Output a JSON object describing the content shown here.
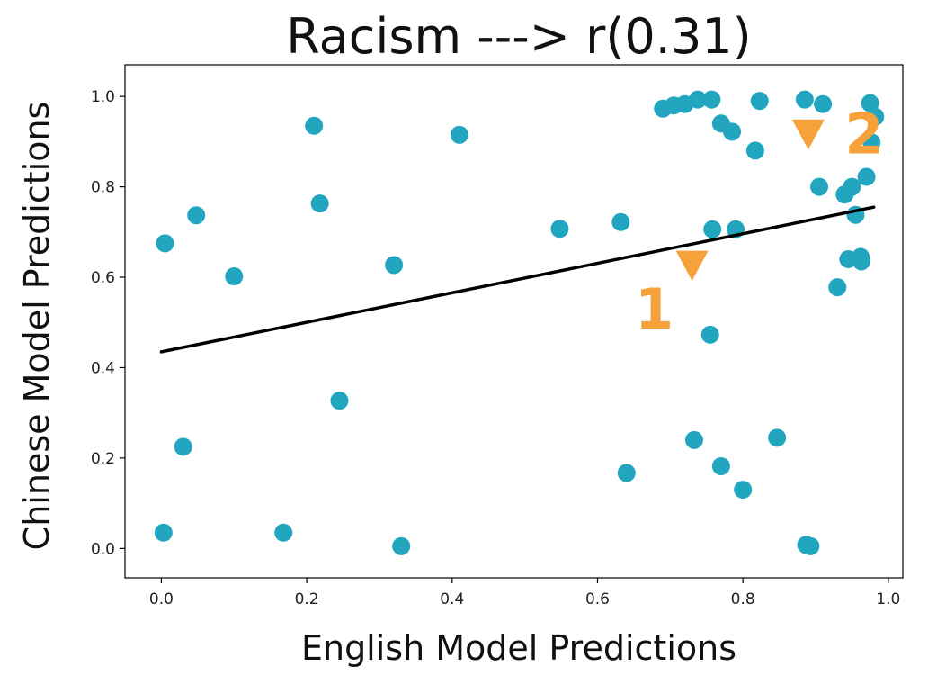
{
  "chart_data": {
    "type": "scatter",
    "title": "Racism ---> r(0.31)",
    "xlabel": "English Model Predictions",
    "ylabel": "Chinese Model Predictions",
    "xlim": [
      -0.05,
      1.02
    ],
    "ylim": [
      -0.065,
      1.07
    ],
    "xticks": [
      0.0,
      0.2,
      0.4,
      0.6,
      0.8,
      1.0
    ],
    "xtick_labels": [
      "0.0",
      "0.2",
      "0.4",
      "0.6",
      "0.8",
      "1.0"
    ],
    "yticks": [
      0.0,
      0.2,
      0.4,
      0.6,
      0.8,
      1.0
    ],
    "ytick_labels": [
      "0.0",
      "0.2",
      "0.4",
      "0.6",
      "0.8",
      "1.0"
    ],
    "grid": false,
    "point_color": "#22a6c0",
    "line_color": "#000000",
    "annotation_color": "#f6a13a",
    "points": [
      {
        "x": 0.005,
        "y": 0.675
      },
      {
        "x": 0.003,
        "y": 0.035
      },
      {
        "x": 0.03,
        "y": 0.225
      },
      {
        "x": 0.048,
        "y": 0.737
      },
      {
        "x": 0.1,
        "y": 0.602
      },
      {
        "x": 0.168,
        "y": 0.035
      },
      {
        "x": 0.21,
        "y": 0.935
      },
      {
        "x": 0.218,
        "y": 0.763
      },
      {
        "x": 0.245,
        "y": 0.327
      },
      {
        "x": 0.32,
        "y": 0.627
      },
      {
        "x": 0.33,
        "y": 0.005
      },
      {
        "x": 0.41,
        "y": 0.915
      },
      {
        "x": 0.548,
        "y": 0.707
      },
      {
        "x": 0.632,
        "y": 0.722
      },
      {
        "x": 0.64,
        "y": 0.167
      },
      {
        "x": 0.69,
        "y": 0.973
      },
      {
        "x": 0.705,
        "y": 0.98
      },
      {
        "x": 0.72,
        "y": 0.983
      },
      {
        "x": 0.733,
        "y": 0.24
      },
      {
        "x": 0.738,
        "y": 0.993
      },
      {
        "x": 0.755,
        "y": 0.473
      },
      {
        "x": 0.757,
        "y": 0.993
      },
      {
        "x": 0.758,
        "y": 0.706
      },
      {
        "x": 0.77,
        "y": 0.94
      },
      {
        "x": 0.77,
        "y": 0.182
      },
      {
        "x": 0.785,
        "y": 0.922
      },
      {
        "x": 0.79,
        "y": 0.706
      },
      {
        "x": 0.8,
        "y": 0.13
      },
      {
        "x": 0.817,
        "y": 0.88
      },
      {
        "x": 0.823,
        "y": 0.99
      },
      {
        "x": 0.847,
        "y": 0.245
      },
      {
        "x": 0.885,
        "y": 0.993
      },
      {
        "x": 0.887,
        "y": 0.008
      },
      {
        "x": 0.893,
        "y": 0.005
      },
      {
        "x": 0.905,
        "y": 0.8
      },
      {
        "x": 0.91,
        "y": 0.983
      },
      {
        "x": 0.93,
        "y": 0.578
      },
      {
        "x": 0.94,
        "y": 0.783
      },
      {
        "x": 0.945,
        "y": 0.64
      },
      {
        "x": 0.95,
        "y": 0.8
      },
      {
        "x": 0.955,
        "y": 0.738
      },
      {
        "x": 0.962,
        "y": 0.645
      },
      {
        "x": 0.963,
        "y": 0.635
      },
      {
        "x": 0.97,
        "y": 0.822
      },
      {
        "x": 0.975,
        "y": 0.985
      },
      {
        "x": 0.977,
        "y": 0.898
      },
      {
        "x": 0.982,
        "y": 0.955
      }
    ],
    "fit_line": {
      "x": [
        0.0,
        0.98
      ],
      "y": [
        0.435,
        0.755
      ]
    },
    "annotations": [
      {
        "label": "1",
        "x": 0.73,
        "y": 0.63
      },
      {
        "label": "2",
        "x": 0.89,
        "y": 0.92
      }
    ]
  }
}
